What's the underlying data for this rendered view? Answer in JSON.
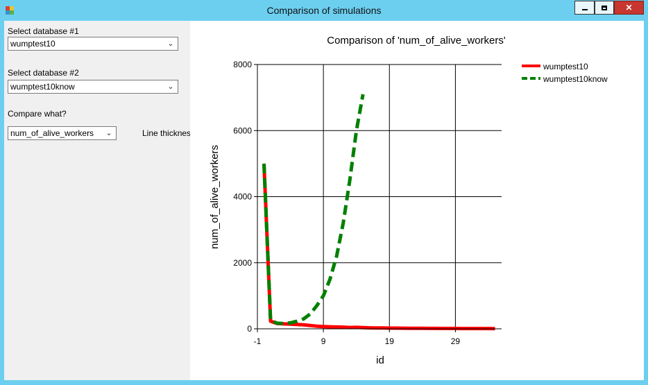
{
  "window": {
    "title": "Comparison of simulations",
    "min_icon": "minimize-icon",
    "max_icon": "maximize-icon",
    "close_icon": "close-icon",
    "close_symbol": "✕"
  },
  "left_panel": {
    "db1_label": "Select database #1",
    "db1_value": "wumptest10",
    "db2_label": "Select database #2",
    "db2_value": "wumptest10know",
    "compare_label": "Compare what?",
    "compare_value": "num_of_alive_workers",
    "thickness_label": "Line thickness"
  },
  "chart_data": {
    "type": "line",
    "title": "Comparison of  'num_of_alive_workers'",
    "xlabel": "id",
    "ylabel": "num_of_alive_workers",
    "xlim": [
      -1,
      36
    ],
    "ylim": [
      0,
      8000
    ],
    "x_ticks": [
      -1,
      9,
      19,
      29
    ],
    "x_tick_labels": [
      "-1",
      "9",
      "19",
      "29"
    ],
    "y_ticks": [
      0,
      2000,
      4000,
      6000,
      8000
    ],
    "y_tick_labels": [
      "0",
      "2000",
      "4000",
      "6000",
      "8000"
    ],
    "grid": true,
    "legend_position": "top-right",
    "series": [
      {
        "name": "wumptest10",
        "color": "#ff0000",
        "style": "solid",
        "x": [
          0,
          1,
          2,
          3,
          4,
          5,
          6,
          7,
          8,
          9,
          10,
          11,
          12,
          13,
          14,
          15,
          16,
          17,
          18,
          19,
          20,
          21,
          22,
          23,
          24,
          25,
          26,
          27,
          28,
          29,
          30,
          31,
          32,
          33,
          34,
          35
        ],
        "y": [
          5000,
          230,
          160,
          150,
          140,
          130,
          120,
          100,
          80,
          70,
          60,
          55,
          50,
          40,
          45,
          35,
          30,
          28,
          25,
          22,
          20,
          18,
          16,
          15,
          14,
          13,
          12,
          11,
          10,
          10,
          9,
          9,
          8,
          8,
          8,
          7
        ]
      },
      {
        "name": "wumptest10know",
        "color": "#008000",
        "style": "dashed",
        "x": [
          0,
          1,
          2,
          3,
          4,
          5,
          6,
          7,
          8,
          9,
          10,
          11,
          12,
          13,
          14,
          15
        ],
        "y": [
          5000,
          250,
          170,
          160,
          180,
          230,
          300,
          450,
          700,
          1000,
          1500,
          2200,
          3200,
          4500,
          6000,
          7100
        ]
      }
    ]
  }
}
